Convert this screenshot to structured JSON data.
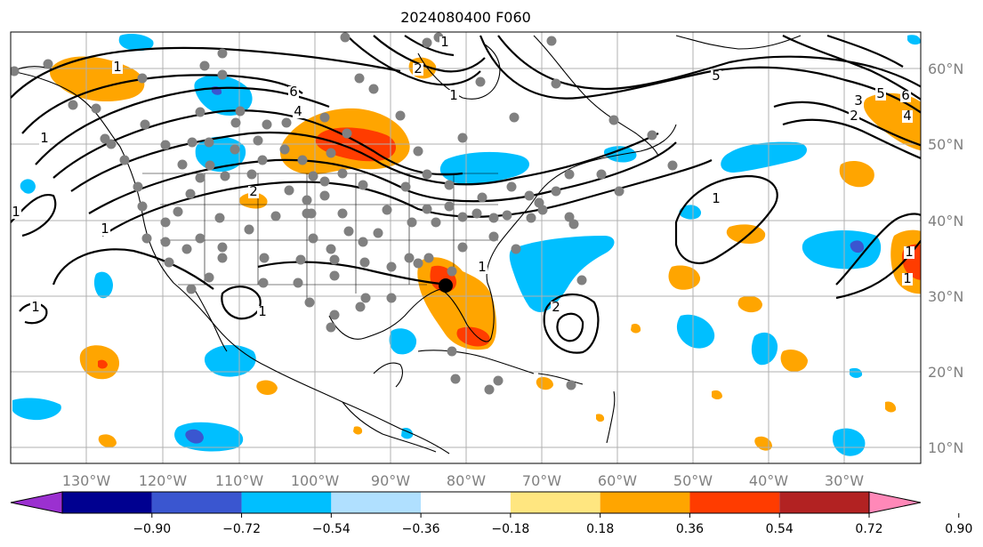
{
  "title": "2024080400 F060",
  "lon_labels": [
    "130°W",
    "120°W",
    "110°W",
    "100°W",
    "90°W",
    "80°W",
    "70°W",
    "60°W",
    "50°W",
    "40°W",
    "30°W"
  ],
  "lat_labels": [
    "60°N",
    "50°N",
    "40°N",
    "30°N",
    "20°N",
    "10°N"
  ],
  "colorbar": {
    "colors": [
      "#9b30d0",
      "#000090",
      "#3a56d0",
      "#00bfff",
      "#b0e0ff",
      "#ffffff",
      "#ffe680",
      "#ffa500",
      "#ff3c00",
      "#b22222",
      "#ff88b8"
    ],
    "ticks": [
      "−0.90",
      "−0.72",
      "−0.54",
      "−0.36",
      "−0.18",
      "0.18",
      "0.36",
      "0.54",
      "0.72",
      "0.90"
    ]
  },
  "contour_labels": [
    "1",
    "1",
    "1",
    "1",
    "1",
    "1",
    "2",
    "2",
    "1",
    "1",
    "1",
    "1",
    "6",
    "4",
    "5",
    "3",
    "2",
    "5",
    "6",
    "4",
    "1",
    "2",
    "1"
  ],
  "colors": {
    "orange": "#ffa500",
    "red": "#ff3c00",
    "darkred": "#b22222",
    "blue": "#00bfff",
    "lightblue": "#b0e0ff",
    "purple": "#3a56d0",
    "dots": "#808080",
    "storm_center": "#000000"
  }
}
